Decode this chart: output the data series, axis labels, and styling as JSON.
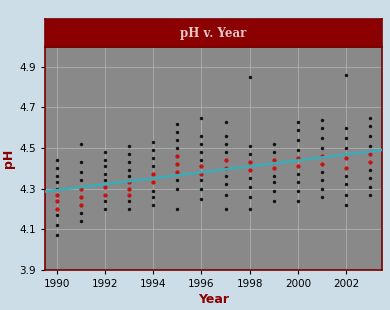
{
  "title": "pH v. Year",
  "xlabel": "Year",
  "ylabel": "pH",
  "xlim": [
    1989.5,
    2003.5
  ],
  "ylim": [
    3.9,
    5.0
  ],
  "yticks": [
    3.9,
    4.1,
    4.3,
    4.5,
    4.7,
    4.9
  ],
  "xticks": [
    1990,
    1992,
    1994,
    1996,
    1998,
    2000,
    2002
  ],
  "background_color": "#898989",
  "outer_background": "#ccdde8",
  "title_bg": "#8b0000",
  "title_color": "#e8c8c8",
  "axis_label_color": "#8b0000",
  "grid_color": "#b0b0b0",
  "trendline_color": "#3aacb8",
  "scatter_black": "#111111",
  "scatter_red": "#cc1111",
  "spine_color": "#7a0000",
  "trendline_x": [
    1989.5,
    2003.5
  ],
  "trendline_y": [
    4.285,
    4.49
  ],
  "black_dots": [
    [
      1990,
      4.07
    ],
    [
      1990,
      4.12
    ],
    [
      1990,
      4.17
    ],
    [
      1990,
      4.2
    ],
    [
      1990,
      4.24
    ],
    [
      1990,
      4.27
    ],
    [
      1990,
      4.3
    ],
    [
      1990,
      4.33
    ],
    [
      1990,
      4.36
    ],
    [
      1990,
      4.4
    ],
    [
      1990,
      4.44
    ],
    [
      1991,
      4.14
    ],
    [
      1991,
      4.18
    ],
    [
      1991,
      4.22
    ],
    [
      1991,
      4.26
    ],
    [
      1991,
      4.3
    ],
    [
      1991,
      4.34
    ],
    [
      1991,
      4.38
    ],
    [
      1991,
      4.43
    ],
    [
      1991,
      4.52
    ],
    [
      1992,
      4.2
    ],
    [
      1992,
      4.24
    ],
    [
      1992,
      4.27
    ],
    [
      1992,
      4.31
    ],
    [
      1992,
      4.34
    ],
    [
      1992,
      4.37
    ],
    [
      1992,
      4.41
    ],
    [
      1992,
      4.44
    ],
    [
      1992,
      4.48
    ],
    [
      1993,
      4.2
    ],
    [
      1993,
      4.24
    ],
    [
      1993,
      4.27
    ],
    [
      1993,
      4.3
    ],
    [
      1993,
      4.33
    ],
    [
      1993,
      4.36
    ],
    [
      1993,
      4.39
    ],
    [
      1993,
      4.43
    ],
    [
      1993,
      4.47
    ],
    [
      1993,
      4.51
    ],
    [
      1994,
      4.22
    ],
    [
      1994,
      4.26
    ],
    [
      1994,
      4.29
    ],
    [
      1994,
      4.33
    ],
    [
      1994,
      4.37
    ],
    [
      1994,
      4.41
    ],
    [
      1994,
      4.45
    ],
    [
      1994,
      4.49
    ],
    [
      1994,
      4.53
    ],
    [
      1995,
      4.2
    ],
    [
      1995,
      4.3
    ],
    [
      1995,
      4.34
    ],
    [
      1995,
      4.38
    ],
    [
      1995,
      4.42
    ],
    [
      1995,
      4.46
    ],
    [
      1995,
      4.5
    ],
    [
      1995,
      4.54
    ],
    [
      1995,
      4.58
    ],
    [
      1995,
      4.62
    ],
    [
      1996,
      4.25
    ],
    [
      1996,
      4.3
    ],
    [
      1996,
      4.34
    ],
    [
      1996,
      4.37
    ],
    [
      1996,
      4.41
    ],
    [
      1996,
      4.44
    ],
    [
      1996,
      4.48
    ],
    [
      1996,
      4.52
    ],
    [
      1996,
      4.56
    ],
    [
      1996,
      4.65
    ],
    [
      1997,
      4.2
    ],
    [
      1997,
      4.27
    ],
    [
      1997,
      4.32
    ],
    [
      1997,
      4.36
    ],
    [
      1997,
      4.4
    ],
    [
      1997,
      4.44
    ],
    [
      1997,
      4.48
    ],
    [
      1997,
      4.52
    ],
    [
      1997,
      4.56
    ],
    [
      1997,
      4.63
    ],
    [
      1998,
      4.2
    ],
    [
      1998,
      4.26
    ],
    [
      1998,
      4.31
    ],
    [
      1998,
      4.35
    ],
    [
      1998,
      4.39
    ],
    [
      1998,
      4.43
    ],
    [
      1998,
      4.47
    ],
    [
      1998,
      4.51
    ],
    [
      1998,
      4.85
    ],
    [
      1999,
      4.24
    ],
    [
      1999,
      4.29
    ],
    [
      1999,
      4.33
    ],
    [
      1999,
      4.36
    ],
    [
      1999,
      4.4
    ],
    [
      1999,
      4.44
    ],
    [
      1999,
      4.48
    ],
    [
      1999,
      4.52
    ],
    [
      2000,
      4.24
    ],
    [
      2000,
      4.29
    ],
    [
      2000,
      4.33
    ],
    [
      2000,
      4.37
    ],
    [
      2000,
      4.41
    ],
    [
      2000,
      4.45
    ],
    [
      2000,
      4.49
    ],
    [
      2000,
      4.54
    ],
    [
      2000,
      4.59
    ],
    [
      2000,
      4.63
    ],
    [
      2001,
      4.26
    ],
    [
      2001,
      4.3
    ],
    [
      2001,
      4.34
    ],
    [
      2001,
      4.38
    ],
    [
      2001,
      4.42
    ],
    [
      2001,
      4.46
    ],
    [
      2001,
      4.5
    ],
    [
      2001,
      4.55
    ],
    [
      2001,
      4.6
    ],
    [
      2001,
      4.64
    ],
    [
      2002,
      4.22
    ],
    [
      2002,
      4.27
    ],
    [
      2002,
      4.32
    ],
    [
      2002,
      4.36
    ],
    [
      2002,
      4.4
    ],
    [
      2002,
      4.45
    ],
    [
      2002,
      4.5
    ],
    [
      2002,
      4.55
    ],
    [
      2002,
      4.6
    ],
    [
      2002,
      4.86
    ],
    [
      2003,
      4.27
    ],
    [
      2003,
      4.31
    ],
    [
      2003,
      4.35
    ],
    [
      2003,
      4.39
    ],
    [
      2003,
      4.43
    ],
    [
      2003,
      4.47
    ],
    [
      2003,
      4.51
    ],
    [
      2003,
      4.56
    ],
    [
      2003,
      4.61
    ],
    [
      2003,
      4.65
    ]
  ],
  "red_dots": [
    [
      1990,
      4.2
    ],
    [
      1990,
      4.24
    ],
    [
      1990,
      4.27
    ],
    [
      1991,
      4.22
    ],
    [
      1991,
      4.26
    ],
    [
      1991,
      4.3
    ],
    [
      1992,
      4.27
    ],
    [
      1992,
      4.31
    ],
    [
      1993,
      4.27
    ],
    [
      1993,
      4.3
    ],
    [
      1993,
      4.33
    ],
    [
      1994,
      4.33
    ],
    [
      1994,
      4.37
    ],
    [
      1995,
      4.38
    ],
    [
      1995,
      4.42
    ],
    [
      1995,
      4.46
    ],
    [
      1996,
      4.37
    ],
    [
      1996,
      4.41
    ],
    [
      1997,
      4.4
    ],
    [
      1997,
      4.44
    ],
    [
      1998,
      4.39
    ],
    [
      1998,
      4.43
    ],
    [
      1999,
      4.4
    ],
    [
      1999,
      4.44
    ],
    [
      2000,
      4.41
    ],
    [
      2000,
      4.45
    ],
    [
      2001,
      4.42
    ],
    [
      2001,
      4.46
    ],
    [
      2002,
      4.4
    ],
    [
      2002,
      4.45
    ],
    [
      2003,
      4.43
    ],
    [
      2003,
      4.47
    ]
  ]
}
